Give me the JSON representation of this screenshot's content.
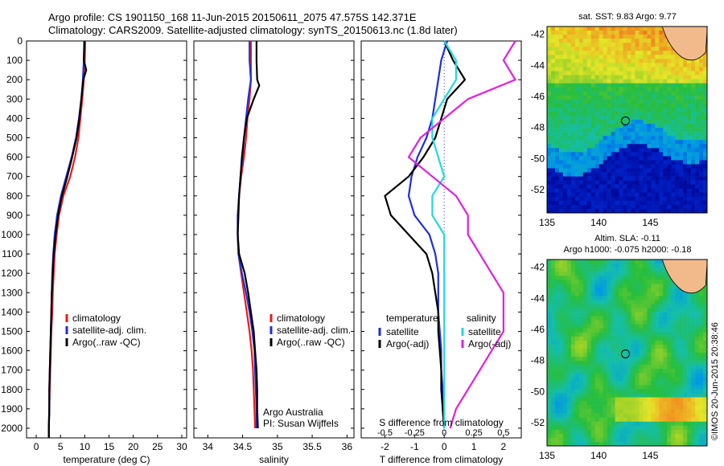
{
  "header": {
    "line1": "Argo profile: CS 1901150_168 11-Jun-2015 20150611_2075 47.575S 142.371E",
    "line2": "Climatology: CARS2009. Satellite-adjusted climatology: synTS_20150613.nc (1.8d later)"
  },
  "depth_ticks": [
    "0",
    "100",
    "200",
    "300",
    "400",
    "500",
    "600",
    "700",
    "800",
    "900",
    "1000",
    "1100",
    "1200",
    "1300",
    "1400",
    "1500",
    "1600",
    "1700",
    "1800",
    "1900",
    "2000"
  ],
  "colors": {
    "climatology": "#e81c1c",
    "satellite": "#1f2fd8",
    "argo": "#000000",
    "sat_salinity": "#22d8e0",
    "argo_salinity": "#e020e0"
  },
  "chart_data": [
    {
      "type": "line",
      "xlabel": "temperature (deg C)",
      "xticks": [
        "0",
        "5",
        "10",
        "15",
        "20",
        "25",
        "30"
      ],
      "xlim": [
        -2,
        31
      ],
      "ylim": [
        2050,
        0
      ],
      "legend": [
        "climatology",
        "satellite-adj. clim.",
        "Argo(..raw -QC)"
      ],
      "series": [
        {
          "name": "climatology",
          "depth": [
            0,
            100,
            200,
            300,
            400,
            500,
            600,
            700,
            800,
            900,
            1000,
            1100,
            1200,
            1300,
            1400,
            1500,
            1600,
            1700,
            1800,
            1900,
            2000,
            2050
          ],
          "values": [
            10.1,
            10.0,
            9.8,
            9.5,
            9.1,
            8.7,
            8.0,
            7.0,
            5.6,
            4.7,
            4.2,
            3.8,
            3.6,
            3.4,
            3.3,
            3.1,
            3.0,
            2.9,
            2.8,
            2.7,
            2.6,
            2.6
          ]
        },
        {
          "name": "satellite-adj. clim.",
          "depth": [
            0,
            100,
            200,
            300,
            400,
            500,
            600,
            700,
            800,
            900,
            1000,
            1100,
            1200,
            1300,
            1400,
            1500,
            1600,
            1700,
            1800,
            1900,
            2000,
            2050
          ],
          "values": [
            9.9,
            9.8,
            9.6,
            9.3,
            8.8,
            8.2,
            7.3,
            6.2,
            5.1,
            4.3,
            3.8,
            3.5,
            3.3,
            3.2,
            3.1,
            3.0,
            2.9,
            2.8,
            2.7,
            2.7,
            2.6,
            2.6
          ]
        },
        {
          "name": "Argo(..raw -QC)",
          "depth": [
            0,
            100,
            150,
            200,
            300,
            400,
            500,
            600,
            700,
            800,
            900,
            1000,
            1100,
            1200,
            1300,
            1400,
            1500,
            1600,
            1700,
            1800,
            1900,
            2000,
            2050
          ],
          "values": [
            9.9,
            9.8,
            10.3,
            9.7,
            9.3,
            8.9,
            8.3,
            7.4,
            6.4,
            5.3,
            4.5,
            4.0,
            3.6,
            3.4,
            3.2,
            3.1,
            3.0,
            2.9,
            2.8,
            2.7,
            2.7,
            2.6,
            2.6
          ]
        }
      ]
    },
    {
      "type": "line",
      "xlabel": "salinity",
      "xticks": [
        "34",
        "34.5",
        "35",
        "35.5",
        "36"
      ],
      "xlim": [
        33.8,
        36.1
      ],
      "ylim": [
        2050,
        0
      ],
      "legend": [
        "climatology",
        "satellite-adj. clim.",
        "Argo(..raw -QC)"
      ],
      "annotation": [
        "Argo Australia",
        "PI: Susan Wijffels"
      ],
      "series": [
        {
          "name": "climatology",
          "depth": [
            0,
            100,
            200,
            300,
            400,
            500,
            600,
            700,
            800,
            900,
            1000,
            1100,
            1200,
            1300,
            1400,
            1500,
            1600,
            1700,
            1800,
            1900,
            2000
          ],
          "values": [
            34.62,
            34.62,
            34.62,
            34.6,
            34.57,
            34.55,
            34.52,
            34.48,
            34.45,
            34.43,
            34.43,
            34.44,
            34.48,
            34.52,
            34.56,
            34.6,
            34.63,
            34.65,
            34.66,
            34.67,
            34.68
          ]
        },
        {
          "name": "satellite-adj. clim.",
          "depth": [
            0,
            100,
            200,
            300,
            400,
            500,
            600,
            700,
            800,
            900,
            1000,
            1100,
            1200,
            1300,
            1400,
            1500,
            1600,
            1700,
            1800,
            1900,
            2000
          ],
          "values": [
            34.6,
            34.6,
            34.62,
            34.58,
            34.55,
            34.52,
            34.5,
            34.47,
            34.45,
            34.43,
            34.43,
            34.44,
            34.49,
            34.55,
            34.6,
            34.64,
            34.67,
            34.68,
            34.69,
            34.7,
            34.7
          ]
        },
        {
          "name": "Argo(..raw -QC)",
          "depth": [
            0,
            100,
            200,
            230,
            300,
            400,
            500,
            600,
            700,
            800,
            900,
            1000,
            1100,
            1200,
            1300,
            1400,
            1500,
            1600,
            1700,
            1800,
            1900,
            2000
          ],
          "values": [
            34.7,
            34.7,
            34.71,
            34.74,
            34.66,
            34.56,
            34.52,
            34.49,
            34.47,
            34.45,
            34.44,
            34.43,
            34.45,
            34.53,
            34.58,
            34.62,
            34.66,
            34.68,
            34.7,
            34.71,
            34.71,
            34.72
          ]
        }
      ]
    },
    {
      "type": "line",
      "xlabel": "T difference from climatology",
      "xlabel_top": "S difference from climatology",
      "xticks": [
        "-2",
        "-1",
        "0",
        "1",
        "2"
      ],
      "xticks_top": [
        "-0.5",
        "-0.25",
        "0",
        "0.25",
        "0.5"
      ],
      "xlim": [
        -2.8,
        2.6
      ],
      "ylim": [
        2050,
        0
      ],
      "legend_temperature": {
        "title": "temperature",
        "items": [
          "satellite",
          "Argo(-adj)"
        ]
      },
      "legend_salinity": {
        "title": "salinity",
        "items": [
          "satellite",
          "Argo(-adj)"
        ]
      },
      "series": [
        {
          "name": "temperature satellite",
          "depth": [
            0,
            100,
            200,
            300,
            400,
            500,
            600,
            700,
            800,
            900,
            1000,
            1100,
            1200,
            1300,
            1400,
            1500,
            1600,
            1700,
            1800,
            1900,
            2000
          ],
          "values": [
            0.1,
            -0.1,
            -0.2,
            -0.3,
            -0.4,
            -0.6,
            -0.9,
            -1.1,
            -1.2,
            -1.0,
            -0.5,
            -0.3,
            -0.2,
            -0.2,
            -0.2,
            -0.15,
            -0.1,
            -0.1,
            -0.05,
            -0.05,
            0.0
          ]
        },
        {
          "name": "temperature Argo(-adj)",
          "depth": [
            0,
            100,
            200,
            300,
            400,
            500,
            600,
            700,
            800,
            900,
            1000,
            1100,
            1200,
            1300,
            1400,
            1500,
            1600,
            1700,
            1800,
            1900,
            2000
          ],
          "values": [
            0.0,
            0.3,
            0.7,
            0.1,
            -0.1,
            -0.3,
            -0.7,
            -1.2,
            -2.0,
            -1.8,
            -1.2,
            -0.6,
            -0.4,
            -0.3,
            -0.2,
            -0.2,
            -0.15,
            -0.1,
            -0.1,
            -0.05,
            0.0
          ]
        },
        {
          "name": "salinity satellite",
          "depth": [
            0,
            100,
            200,
            300,
            400,
            500,
            600,
            700,
            800,
            900,
            1000,
            1100,
            1200,
            1300,
            1400,
            1500,
            1600,
            1700,
            1800,
            1900,
            2000
          ],
          "values": [
            0.0,
            0.1,
            0.1,
            0.0,
            -0.1,
            -0.1,
            -0.05,
            0.0,
            -0.1,
            -0.1,
            0.0,
            0.0,
            0.0,
            0.0,
            0.0,
            0.0,
            0.0,
            0.0,
            0.0,
            0.0,
            0.0
          ]
        },
        {
          "name": "salinity Argo(-adj)",
          "depth": [
            0,
            100,
            200,
            300,
            400,
            500,
            600,
            700,
            800,
            900,
            1000,
            1100,
            1200,
            1300,
            1400,
            1500,
            1600,
            1700,
            1800,
            1900,
            2000
          ],
          "values": [
            0.6,
            0.5,
            0.6,
            0.2,
            0.0,
            -0.2,
            -0.3,
            -0.1,
            0.1,
            0.2,
            0.2,
            0.3,
            0.4,
            0.5,
            0.5,
            0.5,
            0.4,
            0.3,
            0.2,
            0.1,
            0.05
          ]
        }
      ]
    }
  ],
  "maps": [
    {
      "title": "sat. SST: 9.83 Argo: 9.77",
      "xticks": [
        "135",
        "140",
        "145"
      ],
      "yticks": [
        "-42",
        "-44",
        "-46",
        "-48",
        "-50",
        "-52"
      ]
    },
    {
      "title_line1": "Altim. SLA: -0.11",
      "title_line2": "Argo h1000: -0.075 h2000: -0.18",
      "xticks": [
        "135",
        "140",
        "145"
      ],
      "yticks": [
        "-42",
        "-44",
        "-46",
        "-48",
        "-50",
        "-52"
      ]
    }
  ],
  "credit": "©IMOS 20-Jun-2015 20:38:46"
}
